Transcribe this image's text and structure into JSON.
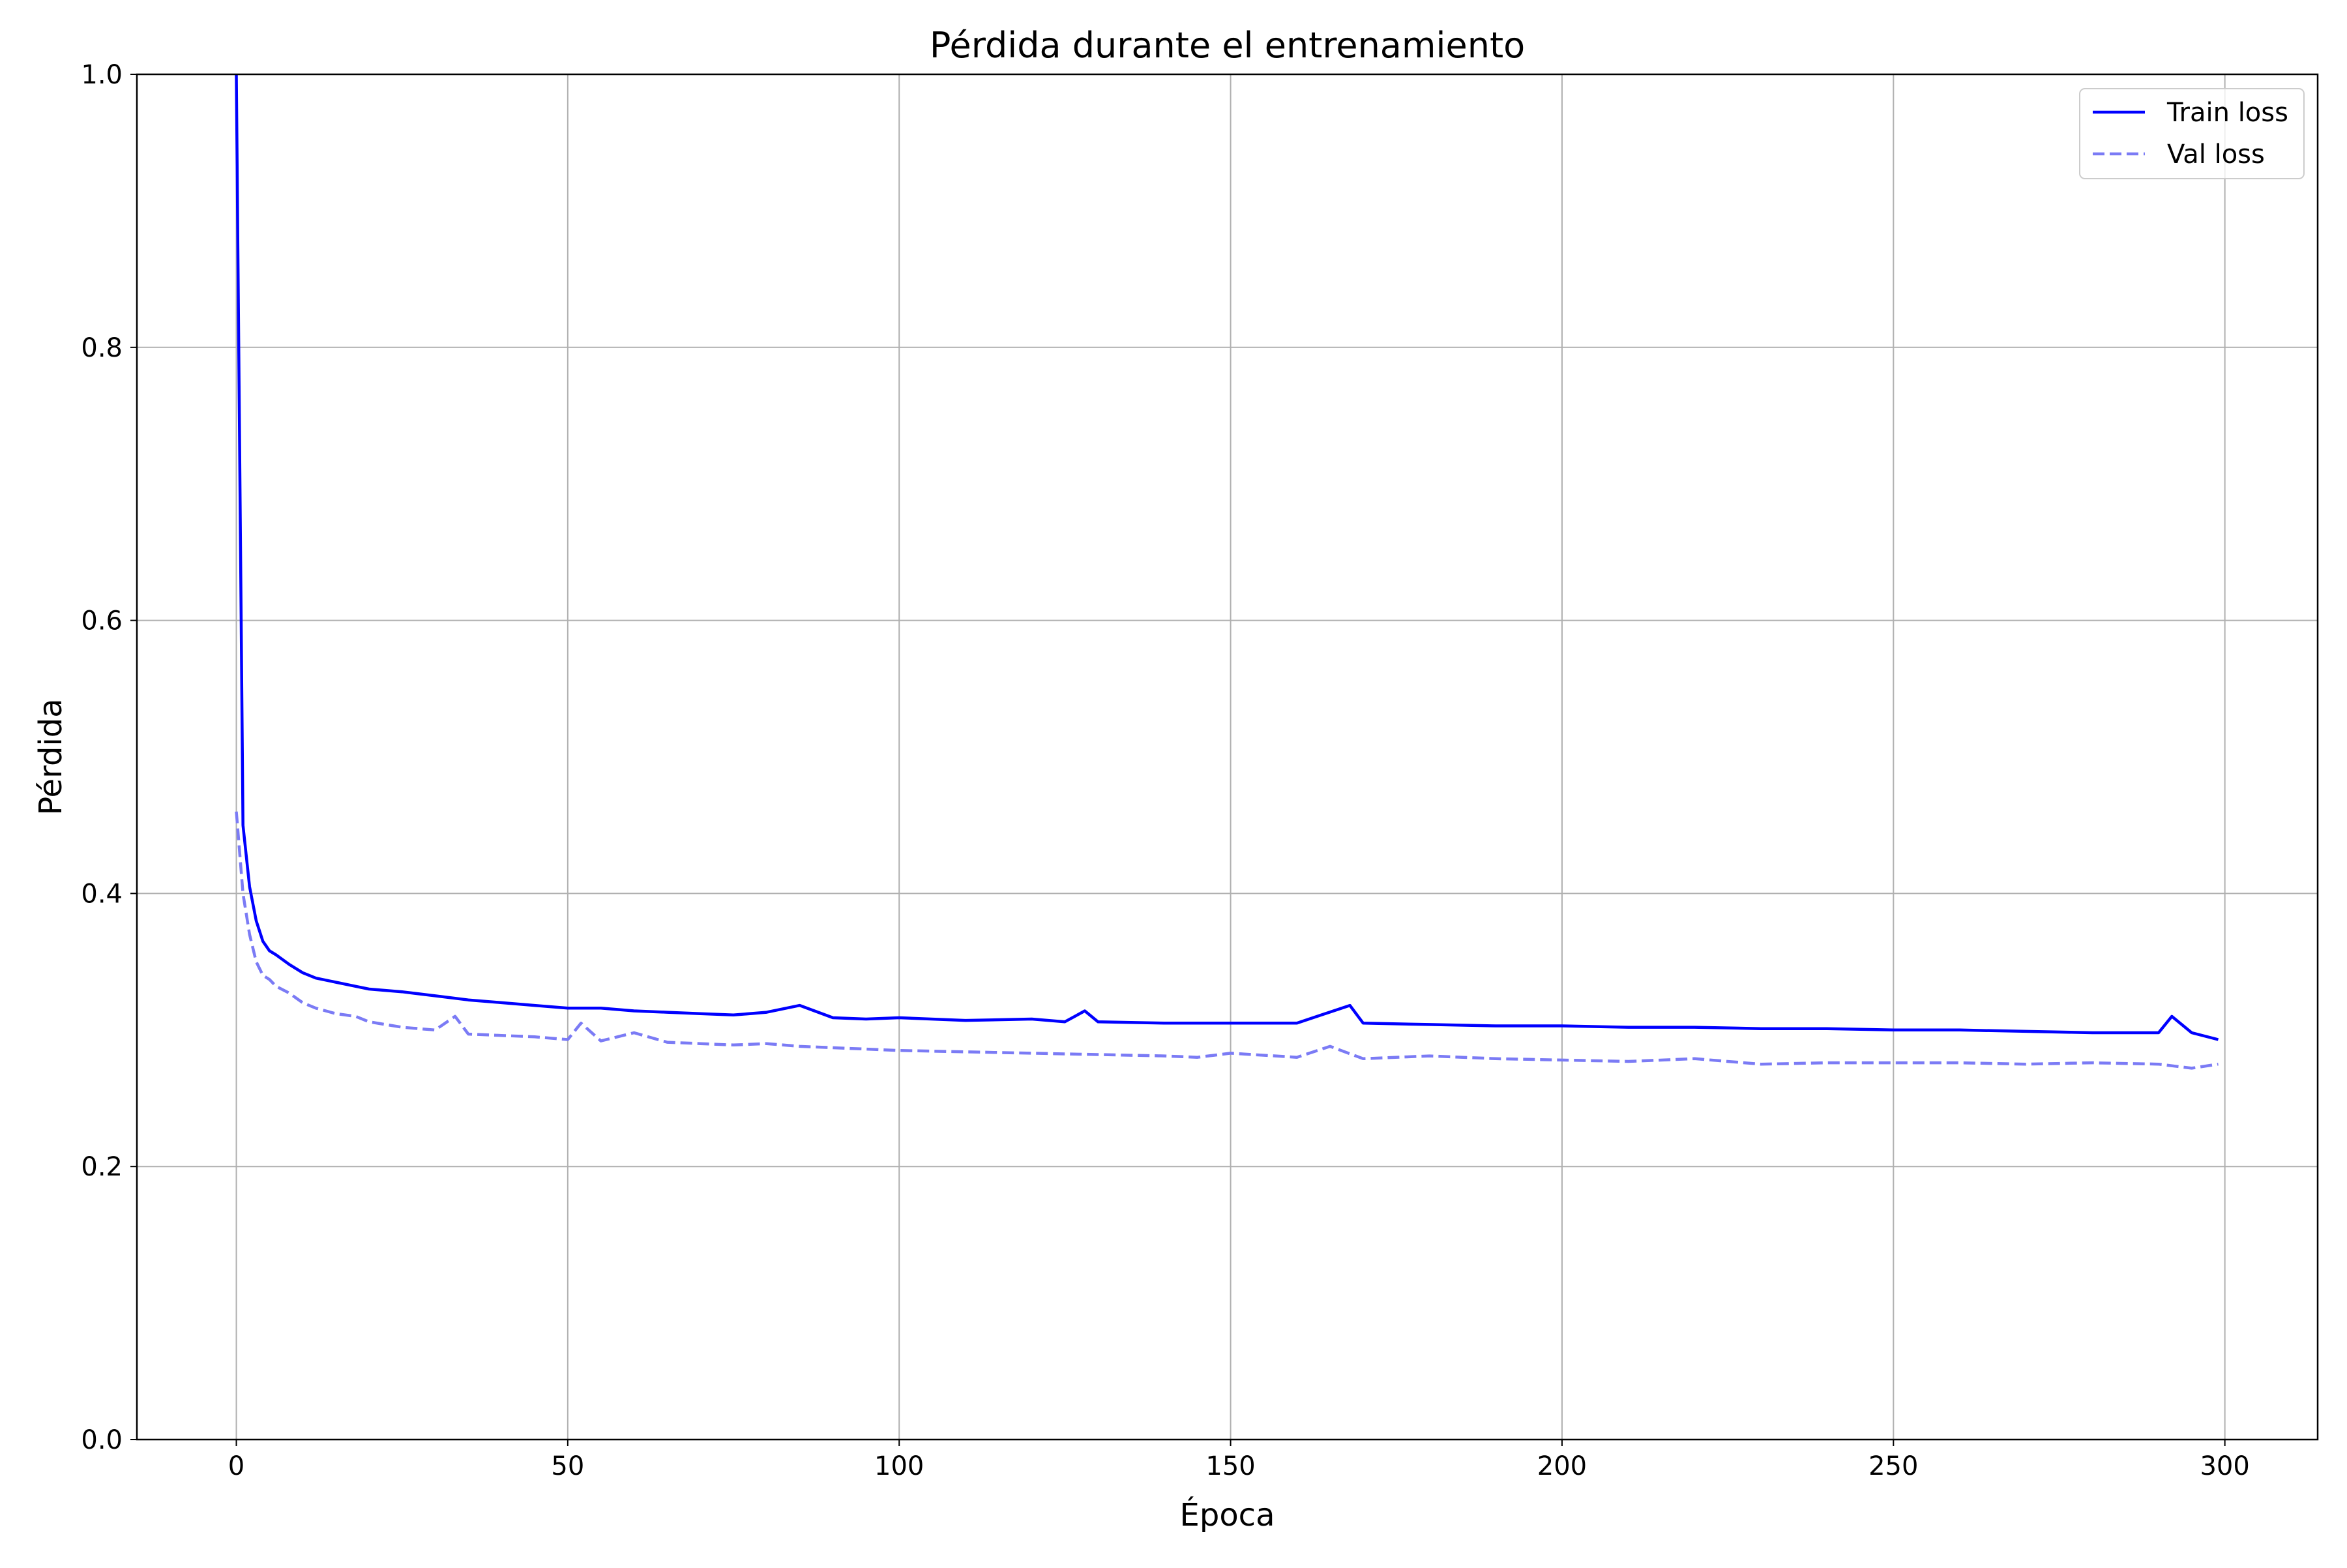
{
  "chart_data": {
    "type": "line",
    "title": "Pérdida durante el entrenamiento",
    "xlabel": "Época",
    "ylabel": "Pérdida",
    "xlim": [
      -15,
      314
    ],
    "ylim": [
      0.0,
      1.0
    ],
    "x_ticks": [
      0,
      50,
      100,
      150,
      200,
      250,
      300
    ],
    "x_tick_labels": [
      "0",
      "50",
      "100",
      "150",
      "200",
      "250",
      "300"
    ],
    "y_ticks": [
      0.0,
      0.2,
      0.4,
      0.6,
      0.8,
      1.0
    ],
    "y_tick_labels": [
      "0.0",
      "0.2",
      "0.4",
      "0.6",
      "0.8",
      "1.0"
    ],
    "grid": true,
    "legend_position": "top-right",
    "series": [
      {
        "name": "Train loss",
        "color": "#0000ff",
        "style": "solid",
        "x": [
          0,
          1,
          2,
          3,
          4,
          5,
          6,
          8,
          10,
          12,
          15,
          18,
          20,
          25,
          30,
          35,
          40,
          45,
          50,
          55,
          60,
          65,
          70,
          75,
          80,
          85,
          90,
          95,
          100,
          110,
          120,
          125,
          128,
          130,
          140,
          150,
          160,
          168,
          170,
          180,
          190,
          200,
          210,
          220,
          230,
          240,
          250,
          260,
          270,
          280,
          290,
          292,
          295,
          299
        ],
        "y": [
          1.0,
          0.45,
          0.405,
          0.38,
          0.365,
          0.358,
          0.355,
          0.348,
          0.342,
          0.338,
          0.335,
          0.332,
          0.33,
          0.328,
          0.325,
          0.322,
          0.32,
          0.318,
          0.316,
          0.316,
          0.314,
          0.313,
          0.312,
          0.311,
          0.313,
          0.318,
          0.309,
          0.308,
          0.309,
          0.307,
          0.308,
          0.306,
          0.314,
          0.306,
          0.305,
          0.305,
          0.305,
          0.318,
          0.305,
          0.304,
          0.303,
          0.303,
          0.302,
          0.302,
          0.301,
          0.301,
          0.3,
          0.3,
          0.299,
          0.298,
          0.298,
          0.31,
          0.298,
          0.293
        ]
      },
      {
        "name": "Val loss",
        "color": "#7b7bf5",
        "style": "dashed",
        "x": [
          0,
          1,
          2,
          3,
          4,
          5,
          6,
          8,
          10,
          12,
          15,
          18,
          20,
          25,
          30,
          33,
          35,
          40,
          45,
          50,
          52,
          55,
          60,
          65,
          70,
          75,
          80,
          85,
          90,
          95,
          100,
          110,
          120,
          130,
          140,
          145,
          150,
          160,
          165,
          170,
          180,
          190,
          200,
          210,
          220,
          230,
          240,
          250,
          260,
          270,
          280,
          290,
          295,
          299
        ],
        "y": [
          0.46,
          0.4,
          0.37,
          0.35,
          0.34,
          0.337,
          0.332,
          0.327,
          0.32,
          0.316,
          0.312,
          0.31,
          0.306,
          0.302,
          0.3,
          0.31,
          0.297,
          0.296,
          0.295,
          0.293,
          0.305,
          0.292,
          0.298,
          0.291,
          0.29,
          0.289,
          0.29,
          0.288,
          0.287,
          0.286,
          0.285,
          0.284,
          0.283,
          0.282,
          0.281,
          0.28,
          0.283,
          0.28,
          0.288,
          0.279,
          0.281,
          0.279,
          0.278,
          0.277,
          0.279,
          0.275,
          0.276,
          0.276,
          0.276,
          0.275,
          0.276,
          0.275,
          0.272,
          0.275
        ]
      }
    ]
  }
}
